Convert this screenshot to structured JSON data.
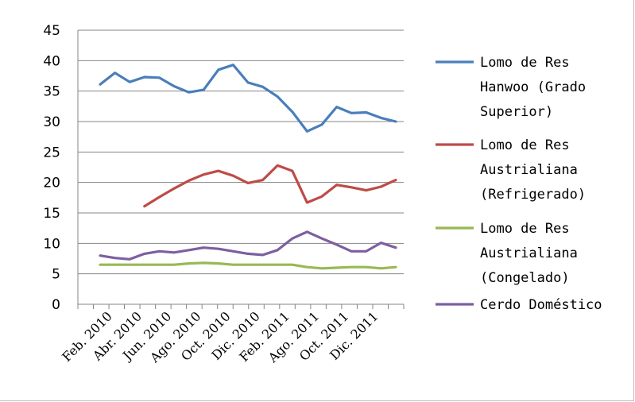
{
  "chart_data": {
    "type": "line",
    "ylim": [
      0,
      45
    ],
    "y_ticks": [
      "0",
      "5",
      "10",
      "15",
      "20",
      "25",
      "30",
      "35",
      "40",
      "45"
    ],
    "x_labels": [
      "Feb. 2010",
      "Abr. 2010",
      "Jun. 2010",
      "Ago. 2010",
      "Oct. 2010",
      "Dic. 2010",
      "Feb. 2011",
      "Ago. 2011",
      "Oct. 2011",
      "Dic. 2011"
    ],
    "grid": true,
    "legend_position": "right",
    "series": [
      {
        "name": "Lomo de Res Hanwoo (Grado Superior)",
        "legend_lines": [
          "Lomo de Res",
          "Hanwoo (Grado",
          "Superior)"
        ],
        "color": "#4a7ebb",
        "values": [
          36.1,
          38.0,
          36.5,
          37.3,
          37.2,
          35.8,
          34.8,
          35.2,
          38.5,
          39.3,
          36.4,
          35.7,
          34.1,
          31.6,
          28.4,
          29.5,
          32.4,
          31.4,
          31.5,
          30.6,
          30.0
        ]
      },
      {
        "name": "Lomo de Res Australiana (Refrigerado)",
        "legend_lines": [
          "Lomo de Res",
          "Austrialiana",
          "(Refrigerado)"
        ],
        "color": "#be4b48",
        "values": [
          null,
          null,
          null,
          16.1,
          17.6,
          19.0,
          20.3,
          21.3,
          21.9,
          21.1,
          19.9,
          20.4,
          22.8,
          21.9,
          16.7,
          17.7,
          19.6,
          19.2,
          18.7,
          19.3,
          20.4
        ]
      },
      {
        "name": "Lomo de Res Australiana (Congelado)",
        "legend_lines": [
          "Lomo de Res",
          "Austrialiana",
          "(Congelado)"
        ],
        "color": "#98b954",
        "values": [
          6.5,
          6.5,
          6.5,
          6.5,
          6.5,
          6.5,
          6.7,
          6.8,
          6.7,
          6.5,
          6.5,
          6.5,
          6.5,
          6.5,
          6.1,
          5.9,
          6.0,
          6.1,
          6.1,
          5.9,
          6.1
        ]
      },
      {
        "name": "Cerdo Doméstico",
        "legend_lines": [
          "Cerdo Doméstico"
        ],
        "color": "#7d5fa0",
        "values": [
          8.0,
          7.6,
          7.4,
          8.3,
          8.7,
          8.5,
          8.9,
          9.3,
          9.1,
          8.7,
          8.3,
          8.1,
          8.9,
          10.8,
          11.9,
          10.8,
          9.8,
          8.7,
          8.7,
          10.1,
          9.3
        ]
      }
    ]
  }
}
